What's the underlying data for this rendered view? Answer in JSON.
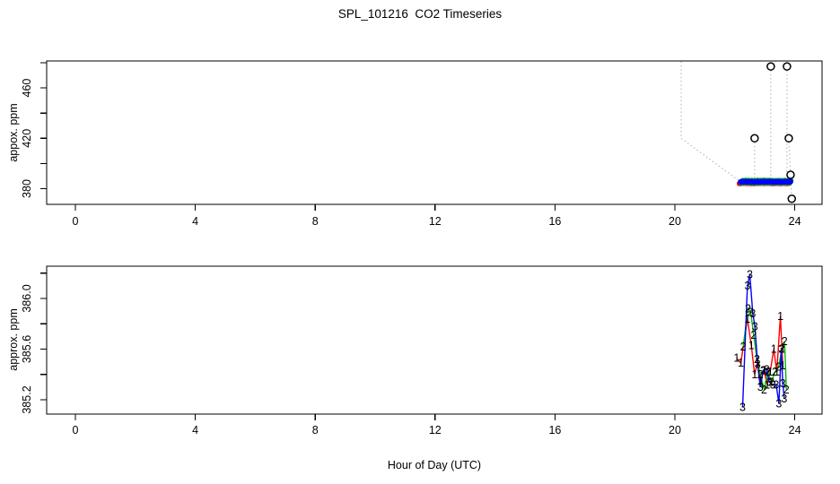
{
  "title": "SPL_101216  CO2 Timeseries",
  "x_axis": {
    "label": "Hour of Day (UTC)",
    "ticks": [
      0,
      4,
      8,
      12,
      16,
      20,
      24
    ]
  },
  "top_panel": {
    "ylabel": "appox. ppm",
    "yticks": [
      {
        "v": 380,
        "label": "380"
      },
      {
        "v": 400,
        "label": ""
      },
      {
        "v": 420,
        "label": "420"
      },
      {
        "v": 440,
        "label": ""
      },
      {
        "v": 460,
        "label": "460"
      },
      {
        "v": 480,
        "label": ""
      }
    ]
  },
  "bottom_panel": {
    "ylabel": "approx. ppm",
    "yticks": [
      {
        "v": 385.2,
        "label": "385.2"
      },
      {
        "v": 385.4,
        "label": ""
      },
      {
        "v": 385.6,
        "label": "385.6"
      },
      {
        "v": 385.8,
        "label": ""
      },
      {
        "v": 386.0,
        "label": "386.0"
      },
      {
        "v": 386.2,
        "label": ""
      }
    ]
  },
  "colors": {
    "series1": "#ff0000",
    "series2": "#00bb00",
    "series3": "#0000ff",
    "dotted": "#b4b4b4",
    "outlier_stroke": "#000000",
    "axis": "#000000"
  },
  "chart_data": [
    {
      "type": "scatter",
      "panel": "top",
      "title": "SPL_101216  CO2 Timeseries",
      "xlabel": "Hour of Day (UTC)",
      "ylabel": "appox. ppm",
      "xlim": [
        -1,
        25
      ],
      "ylim": [
        367,
        481
      ],
      "xticks": [
        0,
        4,
        8,
        12,
        16,
        20,
        24
      ],
      "yticks_labeled": [
        380,
        420,
        460
      ],
      "grid": false,
      "band": {
        "comment": "dense overlapping red/green/blue filled points, three co-located sensor traces",
        "hour_start": 22.2,
        "hour_end": 23.85,
        "ppm": 385.45,
        "n_points": 34
      },
      "outliers_open_circles": [
        [
          23.2,
          477
        ],
        [
          23.74,
          477
        ],
        [
          22.66,
          420
        ],
        [
          23.8,
          420
        ],
        [
          23.86,
          391
        ],
        [
          23.9,
          372
        ]
      ],
      "dotted_segments": [
        [
          [
            20.21,
            481
          ],
          [
            20.21,
            420
          ],
          [
            22.17,
            385.8
          ]
        ],
        [
          [
            22.66,
            420
          ],
          [
            22.66,
            386.2
          ]
        ],
        [
          [
            23.2,
            477
          ],
          [
            23.2,
            386.2
          ]
        ],
        [
          [
            23.74,
            477
          ],
          [
            23.74,
            386.2
          ]
        ],
        [
          [
            23.8,
            420
          ],
          [
            23.86,
            391
          ],
          [
            23.9,
            372
          ]
        ]
      ]
    },
    {
      "type": "line",
      "panel": "bottom",
      "xlabel": "Hour of Day (UTC)",
      "ylabel": "approx. ppm",
      "xlim": [
        -1,
        25
      ],
      "ylim": [
        385.05,
        386.25
      ],
      "xticks": [
        0,
        4,
        8,
        12,
        16,
        20,
        24
      ],
      "yticks_labeled": [
        385.2,
        385.6,
        386.0
      ],
      "grid": false,
      "marker_style": "numeral character used as point symbol (pch '1','2','3')",
      "series": [
        {
          "name": "1",
          "color": "#ff0000",
          "points": [
            [
              22.06,
              385.53
            ],
            [
              22.2,
              385.49
            ],
            [
              22.42,
              385.84
            ],
            [
              22.55,
              385.63
            ],
            [
              22.66,
              385.4
            ],
            [
              22.76,
              385.5
            ],
            [
              22.86,
              385.35
            ],
            [
              22.97,
              385.43
            ],
            [
              23.08,
              385.32
            ],
            [
              23.18,
              385.42
            ],
            [
              23.3,
              385.6
            ],
            [
              23.4,
              385.42
            ],
            [
              23.52,
              385.86
            ],
            [
              23.6,
              385.47
            ]
          ]
        },
        {
          "name": "2",
          "color": "#00bb00",
          "points": [
            [
              22.28,
              385.62
            ],
            [
              22.44,
              385.92
            ],
            [
              22.53,
              385.89
            ],
            [
              22.63,
              385.71
            ],
            [
              22.74,
              385.52
            ],
            [
              22.85,
              385.4
            ],
            [
              22.98,
              385.28
            ],
            [
              23.1,
              385.42
            ],
            [
              23.22,
              385.34
            ],
            [
              23.34,
              385.42
            ],
            [
              23.46,
              385.46
            ],
            [
              23.57,
              385.6
            ],
            [
              23.66,
              385.66
            ],
            [
              23.72,
              385.28
            ]
          ]
        },
        {
          "name": "3",
          "color": "#0000ff",
          "points": [
            [
              22.26,
              385.14
            ],
            [
              22.42,
              386.1
            ],
            [
              22.5,
              386.19
            ],
            [
              22.6,
              385.88
            ],
            [
              22.67,
              385.78
            ],
            [
              22.76,
              385.48
            ],
            [
              22.85,
              385.3
            ],
            [
              22.95,
              385.43
            ],
            [
              23.06,
              385.44
            ],
            [
              23.15,
              385.34
            ],
            [
              23.27,
              385.32
            ],
            [
              23.38,
              385.32
            ],
            [
              23.47,
              385.17
            ],
            [
              23.55,
              385.6
            ],
            [
              23.6,
              385.33
            ],
            [
              23.65,
              385.21
            ]
          ]
        }
      ]
    }
  ]
}
